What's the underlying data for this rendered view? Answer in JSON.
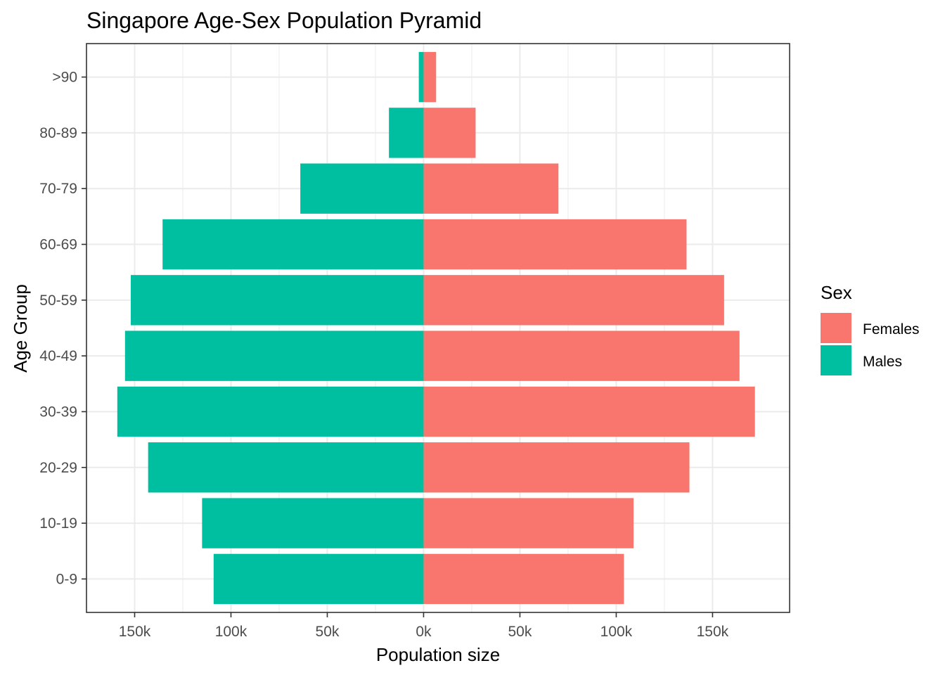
{
  "chart_data": {
    "type": "bar",
    "orientation": "horizontal",
    "title": "Singapore Age-Sex Population Pyramid",
    "xlabel": "Population size",
    "ylabel": "Age Group",
    "categories": [
      "0-9",
      "10-19",
      "20-29",
      "30-39",
      "40-49",
      "50-59",
      "60-69",
      "70-79",
      "80-89",
      ">90"
    ],
    "series": [
      {
        "name": "Females",
        "color": "#F8766D",
        "values": [
          104000,
          109000,
          138000,
          172000,
          164000,
          156000,
          136500,
          70000,
          27000,
          6500
        ]
      },
      {
        "name": "Males",
        "color": "#00BFA0",
        "values": [
          -109000,
          -115000,
          -143000,
          -159000,
          -155000,
          -152000,
          -135500,
          -64000,
          -18000,
          -2500
        ]
      }
    ],
    "xlim": [
      -175000,
      190000
    ],
    "xticks": [
      -150000,
      -100000,
      -50000,
      0,
      50000,
      100000,
      150000
    ],
    "xtick_labels": [
      "150k",
      "100k",
      "50k",
      "0k",
      "50k",
      "100k",
      "150k"
    ],
    "grid": true,
    "legend": {
      "title": "Sex",
      "placement": "right"
    }
  }
}
